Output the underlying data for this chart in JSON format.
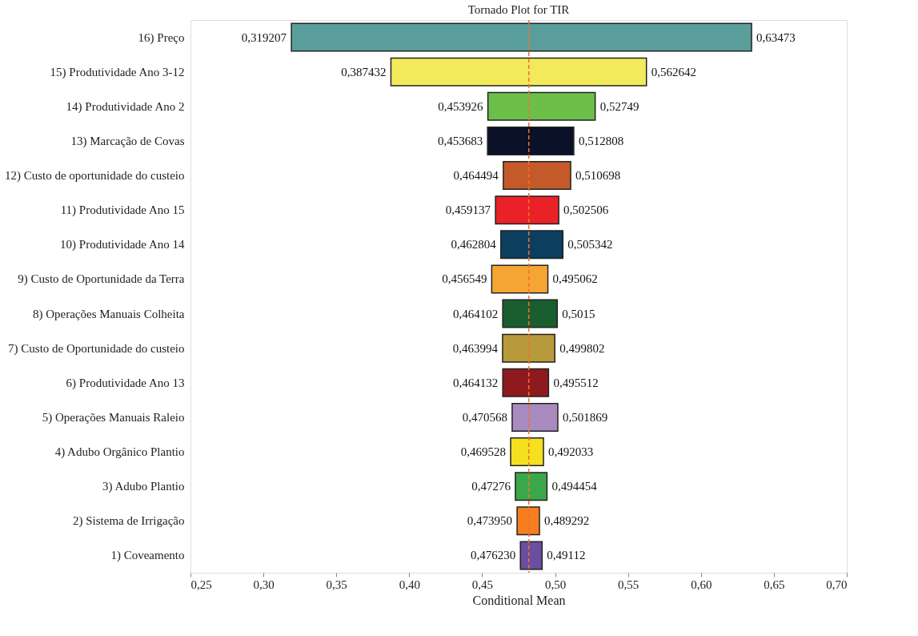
{
  "chart_data": {
    "type": "bar",
    "orientation": "horizontal",
    "title": "Tornado Plot for TIR",
    "xlabel": "Conditional Mean",
    "categories": [
      "16) Preço",
      "15) Produtividade Ano 3-12",
      "14) Produtividade Ano 2",
      "13) Marcação de Covas",
      "12) Custo de oportunidade do custeio",
      "11) Produtividade Ano 15",
      "10) Produtividade Ano 14",
      "9) Custo de Oportunidade da Terra",
      "8) Operações Manuais Colheita",
      "7) Custo de Oportunidade do custeio",
      "6) Produtividade Ano 13",
      "5) Operações Manuais Raleio",
      "4) Adubo Orgânico Plantio",
      "3) Adubo Plantio",
      "2) Sistema de Irrigação",
      "1) Coveamento"
    ],
    "base": [
      0.319207,
      0.387432,
      0.453926,
      0.453683,
      0.464494,
      0.459137,
      0.462804,
      0.456549,
      0.464102,
      0.463994,
      0.464132,
      0.470568,
      0.469528,
      0.47276,
      0.47395,
      0.47623
    ],
    "values": [
      0.315523,
      0.17521,
      0.073564,
      0.059125,
      0.046204,
      0.043369,
      0.042538,
      0.038513,
      0.037398,
      0.035808,
      0.03138,
      0.031301,
      0.022505,
      0.021694,
      0.015342,
      0.01489
    ],
    "colors": [
      "#5a9e9b",
      "#f2ea5a",
      "#6cc04a",
      "#0a1128",
      "#c45a2a",
      "#ea2227",
      "#0c3f5e",
      "#f5a533",
      "#1a5e30",
      "#b89a3a",
      "#8e1a1e",
      "#a98bc0",
      "#f5e020",
      "#3aa84a",
      "#f57f20",
      "#6a4ea0"
    ],
    "annotations": [
      {
        "text": "0,319207",
        "x": 0.319207,
        "y": "16) Preço"
      },
      {
        "text": "0,63473",
        "x": 0.63473,
        "y": "16) Preço"
      },
      {
        "text": "0,387432",
        "x": 0.387432,
        "y": "15) Produtividade Ano 3-12"
      },
      {
        "text": "0,562642",
        "x": 0.562642,
        "y": "15) Produtividade Ano 3-12"
      },
      {
        "text": "0,453926",
        "x": 0.453926,
        "y": "14) Produtividade Ano 2"
      },
      {
        "text": "0,52749",
        "x": 0.52749,
        "y": "14) Produtividade Ano 2"
      },
      {
        "text": "0,453683",
        "x": 0.453683,
        "y": "13) Marcação de Covas"
      },
      {
        "text": "0,512808",
        "x": 0.512808,
        "y": "13) Marcação de Covas"
      },
      {
        "text": "0,464494",
        "x": 0.464494,
        "y": "12) Custo de oportunidade do custeio"
      },
      {
        "text": "0,510698",
        "x": 0.510698,
        "y": "12) Custo de oportunidade do custeio"
      },
      {
        "text": "0,459137",
        "x": 0.459137,
        "y": "11) Produtividade Ano 15"
      },
      {
        "text": "0,502506",
        "x": 0.502506,
        "y": "11) Produtividade Ano 15"
      },
      {
        "text": "0,462804",
        "x": 0.462804,
        "y": "10) Produtividade Ano 14"
      },
      {
        "text": "0,505342",
        "x": 0.505342,
        "y": "10) Produtividade Ano 14"
      },
      {
        "text": "0,456549",
        "x": 0.456549,
        "y": "9) Custo de Oportunidade da Terra"
      },
      {
        "text": "0,495062",
        "x": 0.495062,
        "y": "9) Custo de Oportunidade da Terra"
      },
      {
        "text": "0,464102",
        "x": 0.464102,
        "y": "8) Operações Manuais Colheita"
      },
      {
        "text": "0,5015",
        "x": 0.5015,
        "y": "8) Operações Manuais Colheita"
      },
      {
        "text": "0,463994",
        "x": 0.463994,
        "y": "7) Custo de Oportunidade do custeio"
      },
      {
        "text": "0,499802",
        "x": 0.499802,
        "y": "7) Custo de Oportunidade do custeio"
      },
      {
        "text": "0,464132",
        "x": 0.464132,
        "y": "6) Produtividade Ano 13"
      },
      {
        "text": "0,495512",
        "x": 0.495512,
        "y": "6) Produtividade Ano 13"
      },
      {
        "text": "0,470568",
        "x": 0.470568,
        "y": "5) Operações Manuais Raleio"
      },
      {
        "text": "0,501869",
        "x": 0.501869,
        "y": "5) Operações Manuais Raleio"
      },
      {
        "text": "0,469528",
        "x": 0.469528,
        "y": "4) Adubo Orgânico Plantio"
      },
      {
        "text": "0,492033",
        "x": 0.492033,
        "y": "4) Adubo Orgânico Plantio"
      },
      {
        "text": "0,47276",
        "x": 0.47276,
        "y": "3) Adubo Plantio"
      },
      {
        "text": "0,494454",
        "x": 0.494454,
        "y": "3) Adubo Plantio"
      },
      {
        "text": "0,473950",
        "x": 0.47395,
        "y": "2) Sistema de Irrigação"
      },
      {
        "text": "0,489292",
        "x": 0.489292,
        "y": "2) Sistema de Irrigação"
      },
      {
        "text": "0,476230",
        "x": 0.47623,
        "y": "1) Coveamento"
      },
      {
        "text": "0,49112",
        "x": 0.49112,
        "y": "1) Coveamento"
      }
    ],
    "ref_lines": [
      {
        "axis": "x",
        "value": 0.482,
        "color": "#f07030",
        "line_style": "dashed"
      }
    ],
    "xlim": [
      0.25,
      0.7
    ],
    "xticks": [
      {
        "value": 0.25,
        "label": "0,25"
      },
      {
        "value": 0.3,
        "label": "0,30"
      },
      {
        "value": 0.35,
        "label": "0,35"
      },
      {
        "value": 0.4,
        "label": "0,40"
      },
      {
        "value": 0.45,
        "label": "0,45"
      },
      {
        "value": 0.5,
        "label": "0,50"
      },
      {
        "value": 0.55,
        "label": "0,55"
      },
      {
        "value": 0.6,
        "label": "0,60"
      },
      {
        "value": 0.65,
        "label": "0,65"
      },
      {
        "value": 0.7,
        "label": "0,70"
      }
    ],
    "grid": false
  }
}
